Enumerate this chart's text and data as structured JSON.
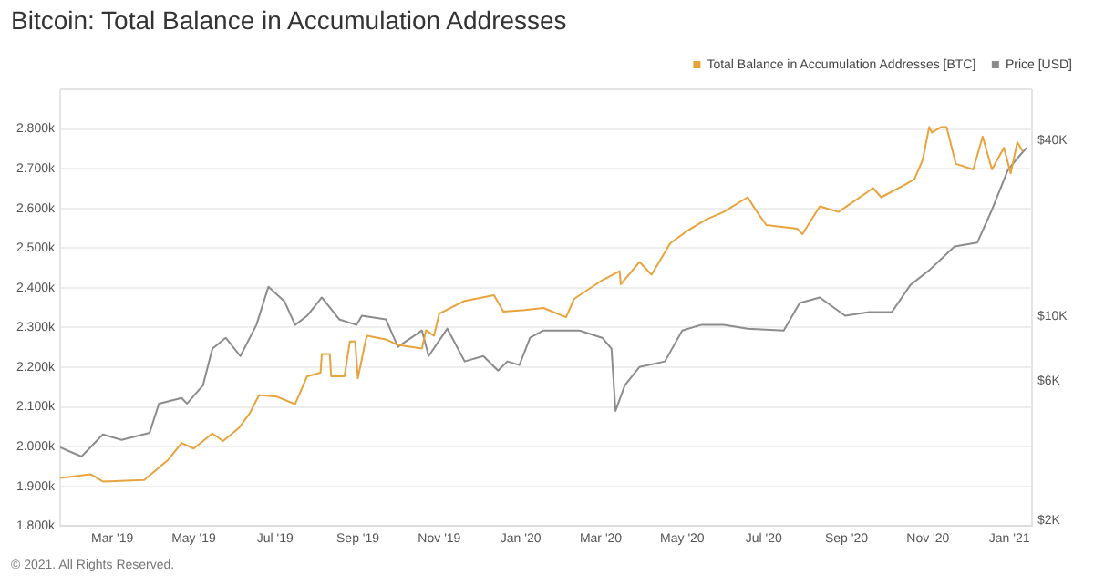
{
  "chart_data": {
    "type": "line",
    "title": "Bitcoin: Total Balance in Accumulation Addresses",
    "annotations": [
      "© 2021. All Rights Reserved."
    ],
    "xlim": [
      "2019-01-21",
      "2021-01-18"
    ],
    "xticks": [
      {
        "value": "2019-03-01",
        "label": "Mar '19"
      },
      {
        "value": "2019-05-01",
        "label": "May '19"
      },
      {
        "value": "2019-07-01",
        "label": "Jul '19"
      },
      {
        "value": "2019-09-01",
        "label": "Sep '19"
      },
      {
        "value": "2019-11-01",
        "label": "Nov '19"
      },
      {
        "value": "2020-01-01",
        "label": "Jan '20"
      },
      {
        "value": "2020-03-01",
        "label": "Mar '20"
      },
      {
        "value": "2020-05-01",
        "label": "May '20"
      },
      {
        "value": "2020-07-01",
        "label": "Jul '20"
      },
      {
        "value": "2020-09-01",
        "label": "Sep '20"
      },
      {
        "value": "2020-11-01",
        "label": "Nov '20"
      },
      {
        "value": "2021-01-01",
        "label": "Jan '21"
      }
    ],
    "ylim": [
      1800,
      2900
    ],
    "yticks": [
      {
        "value": 1800,
        "label": "1.800k"
      },
      {
        "value": 1900,
        "label": "1.900k"
      },
      {
        "value": 2000,
        "label": "2.000k"
      },
      {
        "value": 2100,
        "label": "2.100k"
      },
      {
        "value": 2200,
        "label": "2.200k"
      },
      {
        "value": 2300,
        "label": "2.300k"
      },
      {
        "value": 2400,
        "label": "2.400k"
      },
      {
        "value": 2500,
        "label": "2.500k"
      },
      {
        "value": 2600,
        "label": "2.600k"
      },
      {
        "value": 2700,
        "label": "2.700k"
      },
      {
        "value": 2800,
        "label": "2.800k"
      }
    ],
    "y2lim": [
      1915,
      59700
    ],
    "y2ticks": [
      {
        "value": 2000,
        "label": "$2K"
      },
      {
        "value": 6000,
        "label": "$6K"
      },
      {
        "value": 10000,
        "label": "$10K"
      },
      {
        "value": 40000,
        "label": "$40K"
      }
    ],
    "log": "y2",
    "grid": "y",
    "legend": "top right",
    "marker": "none",
    "line_style": "solid",
    "series": [
      {
        "name": "Total Balance in Accumulation Addresses [BTC]",
        "color": "#e8a33d",
        "x": [
          "2019-01-21",
          "2019-02-13",
          "2019-02-22",
          "2019-03-25",
          "2019-04-12",
          "2019-04-22",
          "2019-05-01",
          "2019-05-15",
          "2019-05-23",
          "2019-06-04",
          "2019-06-12",
          "2019-06-19",
          "2019-07-02",
          "2019-07-16",
          "2019-07-19",
          "2019-07-25",
          "2019-08-04",
          "2019-08-05",
          "2019-08-11",
          "2019-08-12",
          "2019-08-22",
          "2019-08-26",
          "2019-08-30",
          "2019-09-01",
          "2019-09-07",
          "2019-09-08",
          "2019-09-22",
          "2019-10-01",
          "2019-10-19",
          "2019-10-22",
          "2019-10-28",
          "2019-11-01",
          "2019-11-20",
          "2019-12-12",
          "2019-12-19",
          "2020-01-04",
          "2020-01-18",
          "2020-02-04",
          "2020-02-10",
          "2020-03-02",
          "2020-03-15",
          "2020-03-16",
          "2020-03-30",
          "2020-04-08",
          "2020-04-22",
          "2020-05-05",
          "2020-05-19",
          "2020-06-01",
          "2020-06-19",
          "2020-06-26",
          "2020-07-03",
          "2020-07-26",
          "2020-07-30",
          "2020-08-12",
          "2020-08-26",
          "2020-09-21",
          "2020-09-27",
          "2020-10-15",
          "2020-10-22",
          "2020-10-28",
          "2020-11-02",
          "2020-11-04",
          "2020-11-11",
          "2020-11-15",
          "2020-11-22",
          "2020-12-05",
          "2020-12-12",
          "2020-12-19",
          "2020-12-28",
          "2021-01-02",
          "2021-01-07",
          "2021-01-11"
        ],
        "values": [
          1921,
          1930,
          1912,
          1916,
          1967,
          2009,
          1995,
          2033,
          2014,
          2047,
          2084,
          2130,
          2126,
          2107,
          2130,
          2177,
          2186,
          2233,
          2233,
          2177,
          2177,
          2265,
          2265,
          2172,
          2270,
          2279,
          2270,
          2256,
          2247,
          2293,
          2279,
          2335,
          2367,
          2381,
          2340,
          2344,
          2349,
          2326,
          2372,
          2419,
          2442,
          2409,
          2465,
          2433,
          2512,
          2544,
          2572,
          2591,
          2628,
          2591,
          2558,
          2549,
          2535,
          2605,
          2591,
          2651,
          2628,
          2660,
          2674,
          2721,
          2805,
          2791,
          2805,
          2805,
          2712,
          2698,
          2781,
          2698,
          2753,
          2688,
          2767,
          2744
        ]
      },
      {
        "name": "Price [USD]",
        "color": "#8c8c8c",
        "axis": "y2",
        "x": [
          "2019-01-21",
          "2019-02-06",
          "2019-02-22",
          "2019-03-08",
          "2019-03-29",
          "2019-04-05",
          "2019-04-22",
          "2019-04-26",
          "2019-05-08",
          "2019-05-15",
          "2019-05-25",
          "2019-06-05",
          "2019-06-17",
          "2019-06-26",
          "2019-07-08",
          "2019-07-16",
          "2019-07-25",
          "2019-08-05",
          "2019-08-18",
          "2019-08-31",
          "2019-09-04",
          "2019-09-22",
          "2019-10-01",
          "2019-10-19",
          "2019-10-24",
          "2019-11-07",
          "2019-11-20",
          "2019-12-04",
          "2019-12-15",
          "2019-12-22",
          "2019-12-31",
          "2020-01-08",
          "2020-01-18",
          "2020-02-14",
          "2020-03-02",
          "2020-03-09",
          "2020-03-12",
          "2020-03-19",
          "2020-03-30",
          "2020-04-18",
          "2020-05-01",
          "2020-05-15",
          "2020-06-01",
          "2020-06-19",
          "2020-07-16",
          "2020-07-28",
          "2020-08-12",
          "2020-08-31",
          "2020-09-18",
          "2020-10-05",
          "2020-10-19",
          "2020-11-02",
          "2020-11-21",
          "2020-12-08",
          "2020-12-19",
          "2020-12-31",
          "2021-01-08",
          "2021-01-14"
        ],
        "values": [
          3560,
          3310,
          3940,
          3770,
          3990,
          5020,
          5250,
          5020,
          5800,
          7730,
          8430,
          7300,
          9330,
          12600,
          11240,
          9330,
          10030,
          11580,
          9750,
          9330,
          10030,
          9750,
          7850,
          8930,
          7300,
          9060,
          7000,
          7300,
          6510,
          7000,
          6800,
          8430,
          8930,
          8930,
          8430,
          7740,
          4740,
          5800,
          6700,
          7000,
          8930,
          9330,
          9330,
          9060,
          8930,
          11090,
          11580,
          10030,
          10320,
          10320,
          12790,
          14350,
          17320,
          17830,
          23110,
          31670,
          35100,
          37670
        ]
      }
    ]
  }
}
